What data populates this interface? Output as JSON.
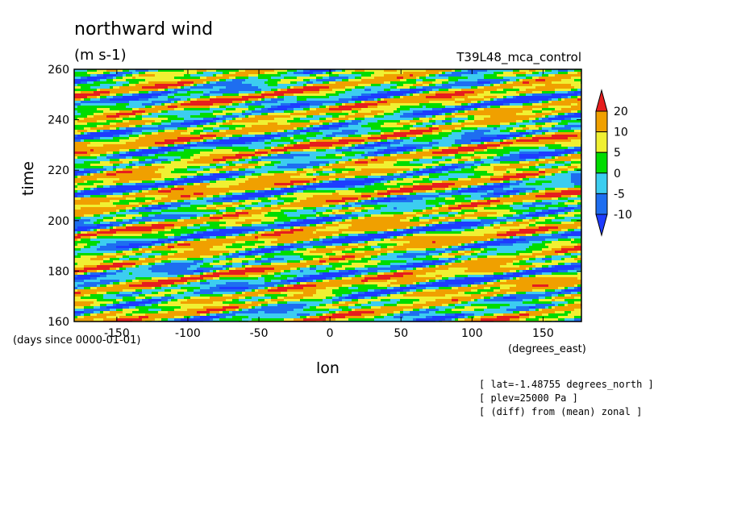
{
  "chart_data": {
    "type": "heatmap",
    "title": "northward wind",
    "units": "(m s-1)",
    "run_name": "T39L48_mca_control",
    "xlabel": "lon",
    "ylabel": "time",
    "x_units": "(degrees_east)",
    "y_units": "(days since 0000-01-01)",
    "xlim": [
      -180,
      177
    ],
    "ylim": [
      160,
      260
    ],
    "x_ticks": [
      -150,
      -100,
      -50,
      0,
      50,
      100,
      150
    ],
    "y_ticks": [
      160,
      180,
      200,
      220,
      240,
      260
    ],
    "color_levels": [
      -10,
      -5,
      0,
      5,
      10,
      20
    ],
    "colors": [
      "#1e6ef0",
      "#3ccdf0",
      "#00dc00",
      "#f0f032",
      "#f0a000",
      "#e61e1e"
    ],
    "under_color": "#1e3cff",
    "over_color": "#e61e1e",
    "colorbar_labels": [
      "20",
      "10",
      "5",
      "0",
      "-5",
      "-10"
    ],
    "grid": false,
    "legend_position": "right"
  },
  "annotations": [
    "[ lat=-1.48755 degrees_north ]",
    "[ plev=25000 Pa ]",
    "[ (diff) from (mean) zonal ]"
  ]
}
